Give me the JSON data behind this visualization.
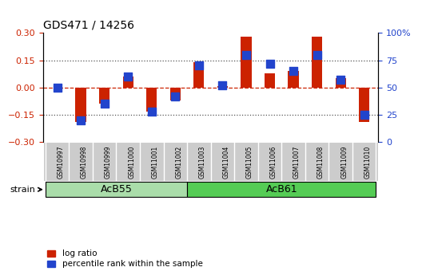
{
  "title": "GDS471 / 14256",
  "samples": [
    "GSM10997",
    "GSM10998",
    "GSM10999",
    "GSM11000",
    "GSM11001",
    "GSM11002",
    "GSM11003",
    "GSM11004",
    "GSM11005",
    "GSM11006",
    "GSM11007",
    "GSM11008",
    "GSM11009",
    "GSM11010"
  ],
  "log_ratio": [
    0.0,
    -0.19,
    -0.09,
    0.06,
    -0.13,
    -0.07,
    0.14,
    0.01,
    0.28,
    0.08,
    0.09,
    0.28,
    0.05,
    -0.19
  ],
  "percentile_rank": [
    50,
    20,
    35,
    60,
    28,
    42,
    70,
    52,
    80,
    72,
    65,
    80,
    57,
    25
  ],
  "groups": [
    {
      "label": "AcB55",
      "start": 0,
      "end": 5,
      "color": "#aaddaa"
    },
    {
      "label": "AcB61",
      "start": 6,
      "end": 13,
      "color": "#55cc55"
    }
  ],
  "ylim": [
    -0.3,
    0.3
  ],
  "y2lim": [
    0,
    100
  ],
  "yticks": [
    -0.3,
    -0.15,
    0.0,
    0.15,
    0.3
  ],
  "y2ticks": [
    0,
    25,
    50,
    75,
    100
  ],
  "hlines": [
    0.15,
    -0.15
  ],
  "bar_color_red": "#cc2200",
  "bar_color_blue": "#2244cc",
  "bg_color": "#ffffff",
  "plot_bg_color": "#ffffff",
  "dotted_color": "#555555",
  "red_dashed_color": "#cc2200",
  "strain_label": "strain",
  "group_label_color": "#000000",
  "tick_label_color_left": "#cc2200",
  "tick_label_color_right": "#2244cc",
  "label_bg_color": "#cccccc",
  "bar_width": 0.45,
  "blue_marker_size": 50
}
